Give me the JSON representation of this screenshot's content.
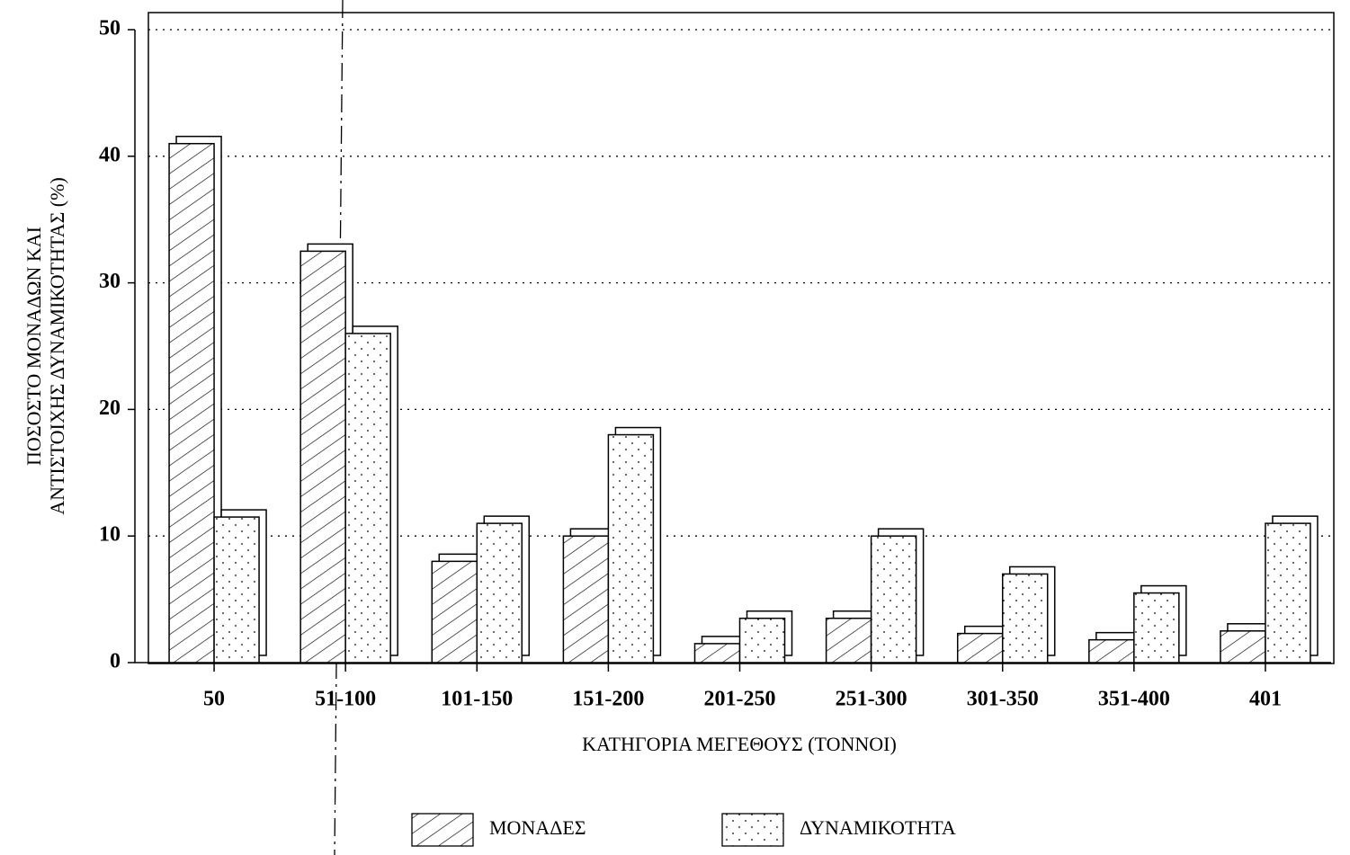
{
  "chart_data": {
    "type": "bar",
    "x_label": "ΚΑΤΗΓΟΡΙΑ ΜΕΓΕΘΟΥΣ (ΤΟΝΝΟΙ)",
    "y_label": [
      "ΠΟΣΟΣΤΟ ΜΟΝΑΔΩΝ ΚΑΙ",
      "ΑΝΤΙΣΤΟΙΧΗΣ ΔΥΝΑΜΙΚΟΤΗΤΑΣ (%)"
    ],
    "categories": [
      "50",
      "51-100",
      "101-150",
      "151-200",
      "201-250",
      "251-300",
      "301-350",
      "351-400",
      "401"
    ],
    "series": [
      {
        "name": "ΜΟΝΑΔΕΣ",
        "color": "#000000",
        "pattern": "hatch",
        "values": [
          41,
          32.5,
          8,
          10,
          1.5,
          3.5,
          2.3,
          1.8,
          2.5
        ]
      },
      {
        "name": "ΔΥΝΑΜΙΚΟΤΗΤΑ",
        "color": "#000000",
        "pattern": "dots",
        "values": [
          11.5,
          26,
          11,
          18,
          3.5,
          10,
          7,
          5.5,
          11
        ]
      }
    ],
    "ylim": [
      0,
      50
    ],
    "yticks": [
      0,
      10,
      20,
      30,
      40,
      50
    ],
    "grid": true
  }
}
